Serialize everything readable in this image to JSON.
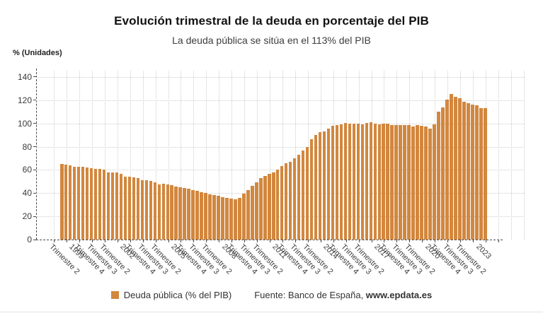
{
  "header": {
    "title": "Evolución trimestral de la deuda en porcentaje del PIB",
    "subtitle": "La deuda pública se sitúa en el 113% del PIB",
    "unit_label": "% (Unidades)"
  },
  "legend": {
    "series_label": "Deuda pública (% del PIB)",
    "source_prefix": "Fuente: Banco de España, ",
    "source_site": "www.epdata.es"
  },
  "colors": {
    "bar": "#d2873e",
    "grid": "#cccccc",
    "axis": "#4a4a4a",
    "tick_text": "#3f3f3f",
    "title_text": "#111111",
    "subtitle_text": "#3c3c3c"
  },
  "chart_data": {
    "type": "bar",
    "title": "Evolución trimestral de la deuda en porcentaje del PIB",
    "subtitle": "La deuda pública se sitúa en el 113% del PIB",
    "ylabel": "% (Unidades)",
    "series_name": "Deuda pública (% del PIB)",
    "source": "Fuente: Banco de España, www.epdata.es",
    "grid": true,
    "legend_position": "bottom",
    "ylim": [
      0,
      147
    ],
    "yticks": [
      0,
      20,
      40,
      60,
      80,
      100,
      120,
      140
    ],
    "x_description": "Quarterly series from 1998 T1 to 2023 T1 (101 bars); axis labeled every 3 quarters, year shown at each Trimestre 1",
    "x_tick_first_index": 1,
    "x_tick_step": 3,
    "x_tick_labels": [
      "Trimestre 2",
      "1999",
      "Trimestre 4",
      "Trimestre 3",
      "Trimestre 2",
      "2002",
      "Trimestre 4",
      "Trimestre 3",
      "Trimestre 2",
      "2005",
      "Trimestre 4",
      "Trimestre 3",
      "Trimestre 2",
      "2008",
      "Trimestre 4",
      "Trimestre 3",
      "Trimestre 2",
      "2011",
      "Trimestre 4",
      "Trimestre 3",
      "Trimestre 2",
      "2014",
      "Trimestre 4",
      "Trimestre 3",
      "Trimestre 2",
      "2017",
      "Trimestre 4",
      "Trimestre 3",
      "Trimestre 2",
      "2020",
      "Trimestre 4",
      "Trimestre 3",
      "Trimestre 2",
      "2023"
    ],
    "values": [
      65.0,
      64.7,
      63.8,
      62.5,
      62.9,
      62.4,
      62.0,
      61.2,
      61.1,
      60.7,
      60.1,
      58.0,
      57.9,
      57.6,
      56.9,
      54.2,
      54.1,
      53.7,
      52.9,
      51.3,
      50.9,
      50.4,
      49.6,
      47.7,
      47.9,
      47.4,
      46.9,
      45.4,
      45.2,
      44.6,
      43.6,
      42.4,
      41.9,
      40.9,
      40.0,
      38.9,
      38.4,
      37.5,
      36.8,
      35.8,
      35.3,
      34.9,
      35.9,
      39.4,
      42.4,
      46.0,
      49.3,
      52.8,
      54.8,
      56.6,
      57.9,
      60.5,
      63.2,
      65.8,
      66.9,
      69.9,
      72.8,
      76.7,
      79.8,
      86.3,
      90.2,
      92.7,
      93.1,
      95.8,
      98.0,
      98.9,
      99.0,
      100.7,
      99.8,
      99.6,
      99.6,
      99.3,
      100.6,
      100.9,
      100.1,
      99.2,
      99.9,
      99.7,
      98.9,
      98.6,
      98.9,
      98.5,
      98.4,
      97.5,
      98.5,
      98.3,
      97.4,
      95.5,
      99.2,
      110.3,
      114.1,
      120.3,
      125.3,
      122.8,
      121.9,
      118.6,
      117.7,
      116.1,
      115.6,
      113.2,
      113.0
    ]
  }
}
